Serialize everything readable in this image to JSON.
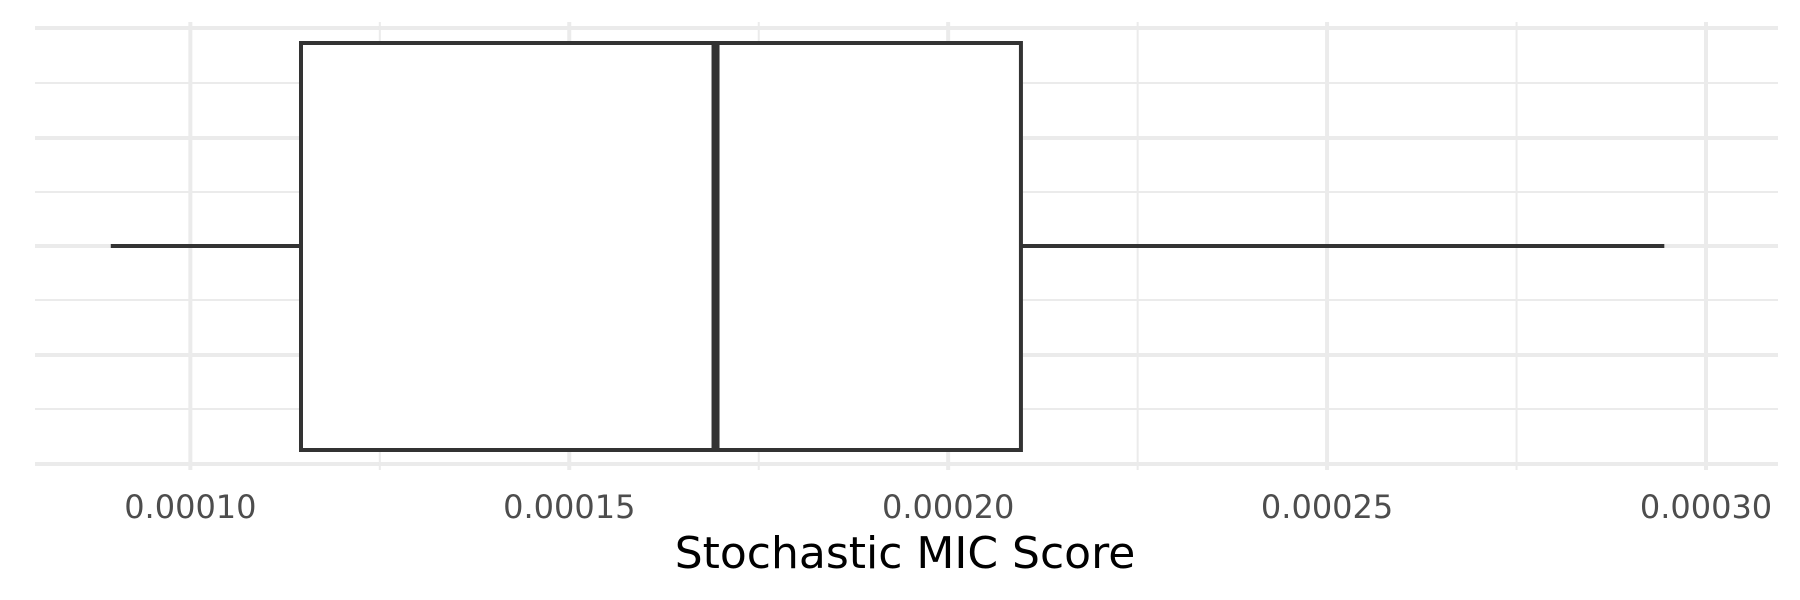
{
  "chart_data": {
    "type": "boxplot",
    "xlabel": "Stochastic MIC Score",
    "xlim": [
      7.95e-05,
      0.0003095
    ],
    "x_ticks": [
      0.0001,
      0.00015,
      0.0002,
      0.00025,
      0.0003
    ],
    "x_tick_labels": [
      "0.00010",
      "0.00015",
      "0.00020",
      "0.00025",
      "0.00030"
    ],
    "x_minor_ticks": [
      0.000125,
      0.000175,
      0.000225,
      0.000275
    ],
    "grid": true,
    "box": {
      "whisker_low": 8.95e-05,
      "q1": 0.0001146,
      "median": 0.0001693,
      "q3": 0.0002096,
      "whisker_high": 0.0002945
    },
    "colors": {
      "box_fill": "#ffffff",
      "box_stroke": "#333333",
      "grid": "#ebebeb",
      "tick_text": "#4d4d4d"
    }
  }
}
